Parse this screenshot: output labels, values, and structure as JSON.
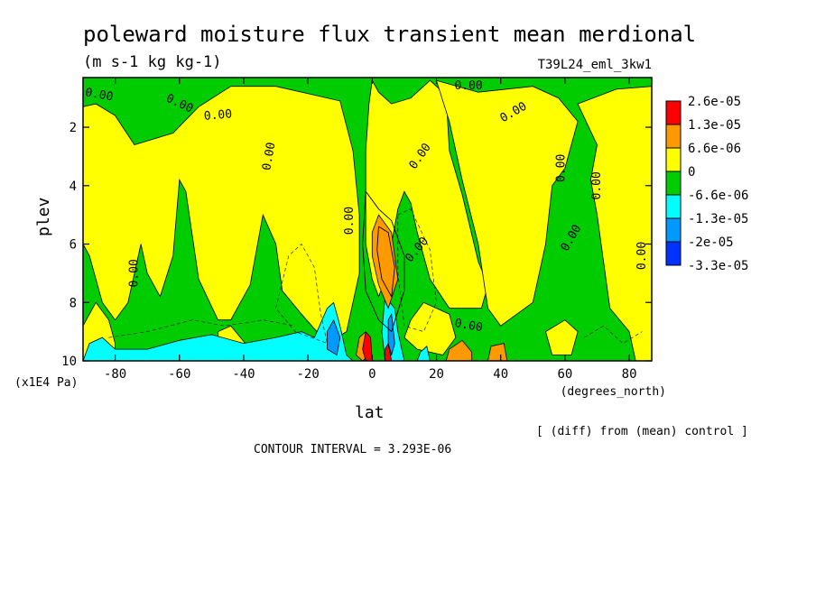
{
  "chart_data": {
    "type": "heatmap",
    "title": "poleward moisture flux transient mean merdional",
    "subtitle": "(m s-1 kg kg-1)",
    "run_label": "T39L24_eml_3kw1",
    "xlabel": "lat",
    "xunits": "(degrees_north)",
    "ylabel": "plev",
    "yunits": "(x1E4 Pa)",
    "x_ticks": [
      "-80",
      "-60",
      "-40",
      "-20",
      "0",
      "20",
      "40",
      "60",
      "80"
    ],
    "x_tick_values": [
      -80,
      -60,
      -40,
      -20,
      0,
      20,
      40,
      60,
      80
    ],
    "y_ticks": [
      "2",
      "4",
      "6",
      "8",
      "10"
    ],
    "y_tick_values": [
      2,
      4,
      6,
      8,
      10
    ],
    "xlim": [
      -90,
      87
    ],
    "ylim": [
      10,
      0.3
    ],
    "contour_label": "0.00",
    "diff_note": "[ (diff) from (mean) control ]",
    "contour_interval": "CONTOUR INTERVAL = 3.293E-06",
    "legend": {
      "placement": "right",
      "labels": [
        "2.6e-05",
        "1.3e-05",
        "6.6e-06",
        "0",
        "-6.6e-06",
        "-1.3e-05",
        "-2e-05",
        "-3.3e-05"
      ],
      "colors": [
        "#ff0000",
        "#ff9900",
        "#ffff00",
        "#00cc00",
        "#00ffff",
        "#0099ff",
        "#0033ff"
      ]
    },
    "fill_colors": {
      "strong_pos": "#ff0000",
      "pos": "#ff9900",
      "weak_pos": "#ffff00",
      "weak_neg": "#00cc00",
      "neg": "#00ffff",
      "mid_neg": "#0099ff",
      "strong_neg": "#0033ff"
    },
    "background_color": "#00cc00",
    "yellow_regions": [
      [
        [
          -90,
          1.3
        ],
        [
          -86,
          1.2
        ],
        [
          -80,
          1.6
        ],
        [
          -74,
          2.6
        ],
        [
          -62,
          2.2
        ],
        [
          -54,
          1.3
        ],
        [
          -44,
          0.6
        ],
        [
          -30,
          0.6
        ],
        [
          -18,
          0.9
        ],
        [
          -10,
          1.1
        ],
        [
          -6,
          2.8
        ],
        [
          -4,
          5.0
        ],
        [
          -4,
          7.0
        ],
        [
          -8,
          9.0
        ],
        [
          -14,
          9.4
        ],
        [
          -22,
          8.4
        ],
        [
          -28,
          7.6
        ],
        [
          -30,
          6.0
        ],
        [
          -34,
          5.0
        ],
        [
          -38,
          7.4
        ],
        [
          -44,
          8.6
        ],
        [
          -48,
          8.6
        ],
        [
          -54,
          7.2
        ],
        [
          -58,
          4.2
        ],
        [
          -60,
          3.8
        ],
        [
          -62,
          6.4
        ],
        [
          -66,
          7.8
        ],
        [
          -70,
          7.0
        ],
        [
          -72,
          6.0
        ],
        [
          -76,
          8.0
        ],
        [
          -80,
          8.6
        ],
        [
          -84,
          8.0
        ],
        [
          -88,
          6.4
        ],
        [
          -90,
          6.0
        ]
      ],
      [
        [
          -90,
          8.8
        ],
        [
          -86,
          8.0
        ],
        [
          -82,
          8.6
        ],
        [
          -80,
          9.4
        ],
        [
          -80,
          10
        ],
        [
          -90,
          10
        ]
      ],
      [
        [
          -48,
          9.0
        ],
        [
          -44,
          8.8
        ],
        [
          -38,
          9.6
        ],
        [
          -44,
          9.8
        ],
        [
          -48,
          9.6
        ]
      ],
      [
        [
          0,
          0.4
        ],
        [
          2,
          0.8
        ],
        [
          6,
          1.2
        ],
        [
          12,
          1.0
        ],
        [
          18,
          0.4
        ],
        [
          23,
          0.9
        ],
        [
          24,
          2.8
        ],
        [
          28,
          4.3
        ],
        [
          33,
          6.6
        ],
        [
          36,
          7.4
        ],
        [
          34,
          8.2
        ],
        [
          24,
          8.2
        ],
        [
          18,
          7.2
        ],
        [
          14,
          5.6
        ],
        [
          12,
          4.6
        ],
        [
          10,
          4.2
        ],
        [
          8,
          4.8
        ],
        [
          6,
          6.0
        ],
        [
          4,
          7.2
        ],
        [
          2,
          7.8
        ],
        [
          0,
          7.2
        ],
        [
          -2,
          6.0
        ],
        [
          -2,
          4.6
        ],
        [
          -2,
          2.8
        ],
        [
          -1,
          1.2
        ]
      ],
      [
        [
          20,
          0.4
        ],
        [
          33,
          0.8
        ],
        [
          50,
          0.6
        ],
        [
          58,
          1.0
        ],
        [
          64,
          1.8
        ],
        [
          60,
          3.4
        ],
        [
          56,
          4.0
        ],
        [
          54,
          6.0
        ],
        [
          50,
          8.0
        ],
        [
          40,
          8.8
        ],
        [
          36,
          8.2
        ],
        [
          33,
          6.0
        ],
        [
          28,
          3.8
        ],
        [
          24,
          1.8
        ]
      ],
      [
        [
          64,
          1.2
        ],
        [
          76,
          0.7
        ],
        [
          87,
          0.6
        ],
        [
          87,
          10
        ],
        [
          82,
          10
        ],
        [
          80,
          9.0
        ],
        [
          74,
          8.2
        ],
        [
          72,
          6.6
        ],
        [
          70,
          5.0
        ],
        [
          68,
          3.8
        ],
        [
          70,
          2.6
        ]
      ],
      [
        [
          12,
          8.6
        ],
        [
          16,
          8.0
        ],
        [
          24,
          8.4
        ],
        [
          26,
          9.2
        ],
        [
          22,
          9.8
        ],
        [
          14,
          9.6
        ],
        [
          10,
          9.2
        ]
      ],
      [
        [
          54,
          9.0
        ],
        [
          60,
          8.6
        ],
        [
          64,
          9.0
        ],
        [
          62,
          9.8
        ],
        [
          56,
          9.8
        ]
      ]
    ],
    "orange_regions": [
      [
        [
          2,
          5.0
        ],
        [
          6,
          5.6
        ],
        [
          8,
          7.2
        ],
        [
          5,
          8.2
        ],
        [
          2,
          7.4
        ],
        [
          0,
          6.4
        ],
        [
          0,
          5.6
        ]
      ],
      [
        [
          37,
          9.5
        ],
        [
          41,
          9.4
        ],
        [
          42,
          10
        ],
        [
          36,
          10
        ]
      ],
      [
        [
          24,
          9.6
        ],
        [
          28,
          9.3
        ],
        [
          31,
          9.7
        ],
        [
          31,
          10
        ],
        [
          23,
          10
        ]
      ],
      [
        [
          -4,
          9.2
        ],
        [
          -2,
          9.0
        ],
        [
          -1,
          9.8
        ],
        [
          -3,
          10
        ],
        [
          -5,
          9.8
        ]
      ]
    ],
    "red_regions": [
      [
        [
          -2,
          9.0
        ],
        [
          -0.5,
          9.2
        ],
        [
          0,
          10
        ],
        [
          -2,
          10
        ],
        [
          -3,
          9.6
        ]
      ],
      [
        [
          4,
          9.6
        ],
        [
          5,
          9.4
        ],
        [
          6,
          10
        ],
        [
          4,
          10
        ]
      ]
    ],
    "cyan_regions": [
      [
        [
          -88,
          9.4
        ],
        [
          -84,
          9.2
        ],
        [
          -80,
          9.6
        ],
        [
          -70,
          9.6
        ],
        [
          -60,
          9.3
        ],
        [
          -50,
          9.1
        ],
        [
          -40,
          9.4
        ],
        [
          -30,
          9.2
        ],
        [
          -22,
          9.0
        ],
        [
          -18,
          9.2
        ],
        [
          -14,
          8.2
        ],
        [
          -12,
          8.0
        ],
        [
          -10,
          8.8
        ],
        [
          -8,
          9.8
        ],
        [
          -6,
          10
        ],
        [
          -90,
          10
        ]
      ],
      [
        [
          4,
          7.8
        ],
        [
          7,
          8.2
        ],
        [
          8,
          9.0
        ],
        [
          10,
          10
        ],
        [
          4,
          10
        ],
        [
          3,
          9.0
        ]
      ],
      [
        [
          15,
          9.7
        ],
        [
          17,
          9.5
        ],
        [
          18,
          10
        ],
        [
          14,
          10
        ]
      ]
    ],
    "blue_regions": [
      [
        [
          -14,
          9.0
        ],
        [
          -12,
          8.6
        ],
        [
          -10,
          9.2
        ],
        [
          -11,
          9.8
        ],
        [
          -14,
          9.6
        ]
      ],
      [
        [
          5,
          8.6
        ],
        [
          6,
          8.4
        ],
        [
          7,
          9.4
        ],
        [
          6,
          9.8
        ],
        [
          5,
          9.4
        ]
      ]
    ],
    "thin_contours": [
      [
        [
          -2,
          4.2
        ],
        [
          2,
          4.8
        ],
        [
          6,
          5.2
        ],
        [
          10,
          6.4
        ],
        [
          10,
          7.6
        ],
        [
          6,
          9.0
        ],
        [
          2,
          8.6
        ],
        [
          -2,
          7.6
        ],
        [
          -3,
          6.0
        ],
        [
          -2,
          4.2
        ]
      ],
      [
        [
          2,
          5.4
        ],
        [
          5,
          5.6
        ],
        [
          7,
          6.8
        ],
        [
          6,
          7.8
        ],
        [
          3,
          7.2
        ],
        [
          1.5,
          6.2
        ],
        [
          2,
          5.4
        ]
      ]
    ],
    "dashed_contours": [
      [
        [
          -30,
          8.2
        ],
        [
          -26,
          6.4
        ],
        [
          -22,
          6.0
        ],
        [
          -18,
          6.8
        ],
        [
          -16,
          8.4
        ],
        [
          -14,
          9.4
        ],
        [
          -24,
          9.0
        ],
        [
          -30,
          8.2
        ]
      ],
      [
        [
          8,
          5.0
        ],
        [
          12,
          4.8
        ],
        [
          18,
          6.2
        ],
        [
          20,
          8.0
        ],
        [
          16,
          9.0
        ],
        [
          10,
          8.8
        ],
        [
          8,
          7.0
        ],
        [
          8,
          5.0
        ]
      ],
      [
        [
          -82,
          9.2
        ],
        [
          -70,
          9.0
        ],
        [
          -56,
          8.6
        ],
        [
          -46,
          8.8
        ],
        [
          -34,
          8.6
        ],
        [
          -24,
          8.8
        ]
      ],
      [
        [
          66,
          9.2
        ],
        [
          72,
          8.8
        ],
        [
          78,
          9.4
        ],
        [
          84,
          9.0
        ]
      ]
    ],
    "contour_labels": [
      {
        "lon": -85,
        "p": 0.9,
        "rot": 10
      },
      {
        "lon": -60,
        "p": 1.2,
        "rot": 25
      },
      {
        "lon": -48,
        "p": 1.6,
        "rot": -5
      },
      {
        "lon": -32,
        "p": 3.0,
        "rot": -80
      },
      {
        "lon": -74,
        "p": 7.0,
        "rot": -90
      },
      {
        "lon": -7,
        "p": 5.2,
        "rot": -90
      },
      {
        "lon": 15,
        "p": 3.0,
        "rot": -55
      },
      {
        "lon": 14,
        "p": 6.2,
        "rot": -50
      },
      {
        "lon": 30,
        "p": 0.6,
        "rot": 0
      },
      {
        "lon": 44,
        "p": 1.5,
        "rot": -30
      },
      {
        "lon": 59,
        "p": 3.4,
        "rot": -90
      },
      {
        "lon": 70,
        "p": 4.0,
        "rot": -90
      },
      {
        "lon": 62,
        "p": 5.8,
        "rot": -60
      },
      {
        "lon": 84,
        "p": 6.4,
        "rot": -90
      },
      {
        "lon": 30,
        "p": 8.8,
        "rot": 10
      }
    ]
  }
}
